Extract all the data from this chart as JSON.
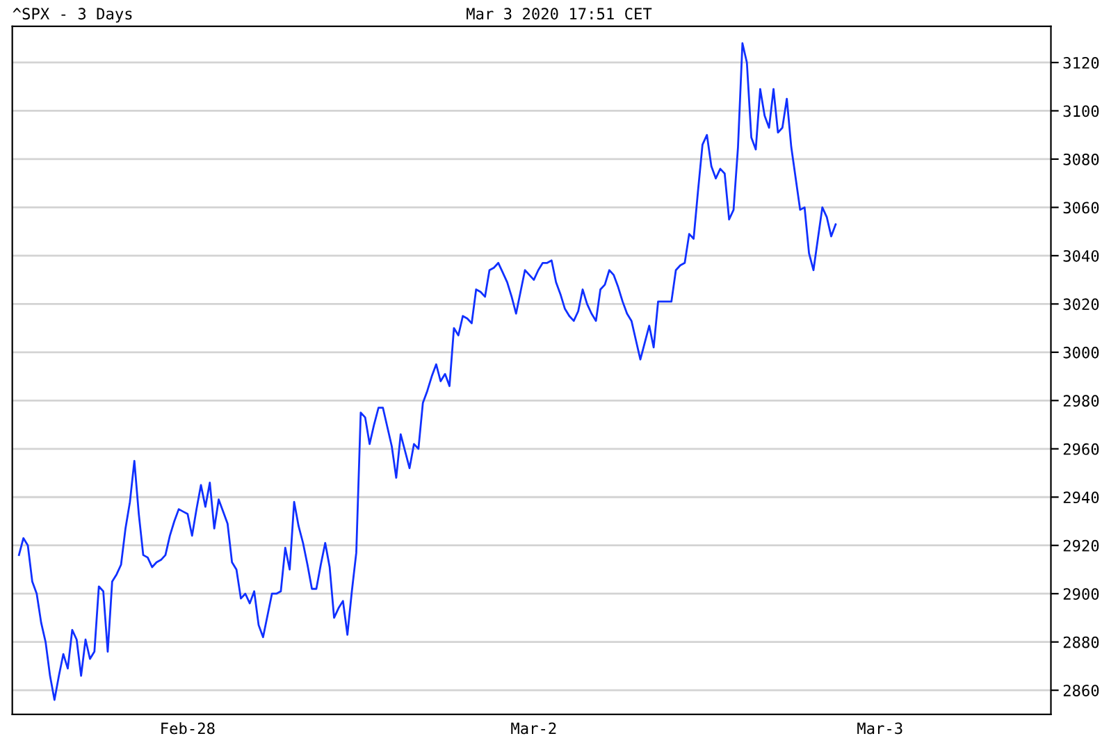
{
  "chart_data": {
    "type": "line",
    "title": "^SPX - 3 Days",
    "subtitle": "Mar 3 2020 17:51 CET",
    "categories": [
      null,
      null,
      null,
      null,
      null,
      null,
      null,
      null,
      null,
      null,
      null,
      null,
      null,
      null,
      null,
      null,
      null,
      null,
      null,
      null,
      null,
      null,
      null,
      null,
      null,
      null,
      null,
      null,
      null,
      null,
      null,
      null,
      null,
      null,
      null,
      null,
      null,
      null,
      null,
      "Feb-28",
      null,
      null,
      null,
      null,
      null,
      null,
      null,
      null,
      null,
      null,
      null,
      null,
      null,
      null,
      null,
      null,
      null,
      null,
      null,
      null,
      null,
      null,
      null,
      null,
      null,
      null,
      null,
      null,
      null,
      null,
      null,
      null,
      null,
      null,
      null,
      null,
      null,
      null,
      null,
      null,
      null,
      null,
      null,
      null,
      null,
      null,
      null,
      null,
      null,
      null,
      null,
      null,
      null,
      null,
      null,
      null,
      null,
      null,
      null,
      null,
      null,
      null,
      null,
      null,
      null,
      null,
      null,
      null,
      null,
      null,
      null,
      null,
      null,
      null,
      null,
      null,
      null,
      "Mar-2",
      null,
      null,
      null,
      null,
      null,
      null,
      null,
      null,
      null,
      null,
      null,
      null,
      null,
      null,
      null,
      null,
      null,
      null,
      null,
      null,
      null,
      null,
      null,
      null,
      null,
      null,
      null,
      null,
      null,
      null,
      null,
      null,
      null,
      null,
      null,
      null,
      null,
      null,
      null,
      null,
      null,
      null,
      null,
      null,
      null,
      null,
      null,
      null,
      null,
      null,
      null,
      null,
      null,
      null,
      null,
      null,
      null,
      null,
      null,
      null,
      null,
      null,
      null,
      null,
      null,
      null,
      null,
      null,
      null,
      null,
      null,
      null,
      null,
      null,
      null,
      null,
      null,
      "Mar-3",
      null,
      null,
      null,
      null,
      null,
      null,
      null,
      null,
      null,
      null,
      null,
      null,
      null,
      null,
      null,
      null,
      null,
      null,
      null,
      null,
      null,
      null,
      null,
      null,
      null,
      null,
      null,
      null,
      null,
      null,
      null,
      null,
      null,
      null,
      null,
      null,
      null,
      null
    ],
    "ylim": [
      2850,
      3135
    ],
    "yticks": [
      2860,
      2880,
      2900,
      2920,
      2940,
      2960,
      2980,
      3000,
      3020,
      3040,
      3060,
      3080,
      3100,
      3120
    ],
    "grid": "y",
    "marker": "none",
    "line_style": "solid",
    "series": [
      {
        "color": "#1030ff",
        "values": [
          null,
          2916,
          2923,
          2920,
          2905,
          2900,
          2888,
          2880,
          2866,
          2856,
          2866,
          2875,
          2869,
          2885,
          2881,
          2866,
          2881,
          2873,
          2876,
          2903,
          2901,
          2876,
          2905,
          2908,
          2912,
          2927,
          2938,
          2955,
          2933,
          2916,
          2915,
          2911,
          2913,
          2914,
          2916,
          2924,
          2930,
          2935,
          2934,
          2933,
          2924,
          2935,
          2945,
          2936,
          2946,
          2927,
          2939,
          2934,
          2929,
          2913,
          2910,
          2898,
          2900,
          2896,
          2901,
          2887,
          2882,
          2891,
          2900,
          2900,
          2901,
          2919,
          2910,
          2938,
          2928,
          2921,
          2912,
          2902,
          2902,
          2912,
          2921,
          2911,
          2890,
          2894,
          2897,
          2883,
          2901,
          2917,
          2975,
          2973,
          2962,
          2970,
          2977,
          2977,
          2969,
          2961,
          2948,
          2966,
          2959,
          2952,
          2962,
          2960,
          2979,
          2984,
          2990,
          2995,
          2988,
          2991,
          2986,
          3010,
          3007,
          3015,
          3014,
          3012,
          3026,
          3025,
          3023,
          3034,
          3035,
          3037,
          3033,
          3029,
          3023,
          3016,
          3025,
          3034,
          3032,
          3030,
          3034,
          3037,
          3037,
          3038,
          3029,
          3024,
          3018,
          3015,
          3013,
          3017,
          3026,
          3020,
          3016,
          3013,
          3026,
          3028,
          3034,
          3032,
          3027,
          3021,
          3016,
          3013,
          3005,
          2997,
          3004,
          3011,
          3002,
          3021,
          3021,
          3021,
          3021,
          3034,
          3036,
          3037,
          3049,
          3047,
          3067,
          3086,
          3090,
          3077,
          3072,
          3076,
          3074,
          3055,
          3059,
          3085,
          3128,
          3120,
          3089,
          3084,
          3109,
          3098,
          3093,
          3109,
          3091,
          3093,
          3105,
          3085,
          3072,
          3059,
          3060,
          3041,
          3034,
          3047,
          3060,
          3056,
          3048,
          3053,
          null,
          null,
          null,
          null,
          null,
          null,
          null,
          null,
          null,
          null,
          null,
          null,
          null,
          null,
          null,
          null,
          null,
          null,
          null,
          null,
          null,
          null,
          null,
          null,
          null,
          null,
          null,
          null,
          null,
          null,
          null,
          null,
          null,
          null,
          null,
          null,
          null,
          null,
          null,
          null,
          null,
          null,
          null,
          null,
          null,
          null,
          null,
          null
        ]
      }
    ]
  }
}
